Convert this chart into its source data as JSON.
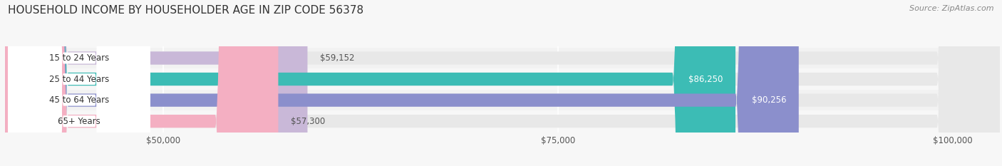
{
  "title": "HOUSEHOLD INCOME BY HOUSEHOLDER AGE IN ZIP CODE 56378",
  "source": "Source: ZipAtlas.com",
  "categories": [
    "15 to 24 Years",
    "25 to 44 Years",
    "45 to 64 Years",
    "65+ Years"
  ],
  "values": [
    59152,
    86250,
    90256,
    57300
  ],
  "bar_colors": [
    "#c9b8d8",
    "#3cbcb5",
    "#8b8fcc",
    "#f4afc2"
  ],
  "value_labels": [
    "$59,152",
    "$86,250",
    "$90,256",
    "$57,300"
  ],
  "xmin": 40000,
  "xmax": 103000,
  "xticks": [
    50000,
    75000,
    100000
  ],
  "xtick_labels": [
    "$50,000",
    "$75,000",
    "$100,000"
  ],
  "background_color": "#f7f7f7",
  "bar_bg_color": "#e8e8e8",
  "title_fontsize": 11,
  "label_fontsize": 8.5,
  "value_fontsize": 8.5,
  "source_fontsize": 8
}
